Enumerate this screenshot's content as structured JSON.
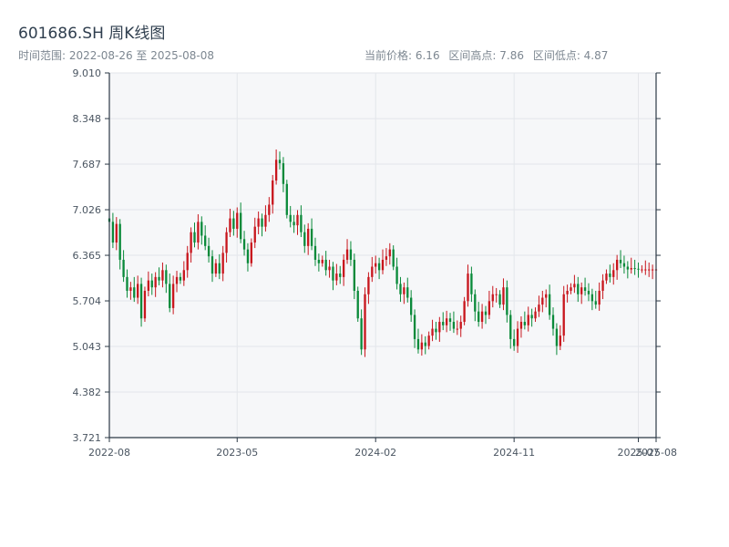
{
  "header": {
    "title": "601686.SH 周K线图",
    "range": "时间范围: 2022-08-26 至 2025-08-08",
    "current": "当前价格: 6.16",
    "high": "区间高点: 7.86",
    "low": "区间低点: 4.87"
  },
  "colors": {
    "up": "#c8161d",
    "down": "#0a8a3a",
    "plot_bg": "#f6f7f9",
    "grid": "#e3e6ea",
    "axis": "#2b3845"
  },
  "chart_data": {
    "type": "candlestick",
    "title": "601686.SH 周K线图",
    "xlabel": "",
    "ylabel": "",
    "ylim": [
      3.721,
      9.01
    ],
    "yticks": [
      "3.721",
      "4.382",
      "5.043",
      "5.704",
      "6.365",
      "7.026",
      "7.687",
      "8.348",
      "9.010"
    ],
    "xticks": [
      {
        "label": "2022-08",
        "date": "2022-08-26"
      },
      {
        "label": "2023-05",
        "date": "2023-05-05"
      },
      {
        "label": "2024-02",
        "date": "2024-02-02"
      },
      {
        "label": "2024-11",
        "date": "2024-11-01"
      },
      {
        "label": "2025-07",
        "date": "2025-07-04"
      },
      {
        "label": "2025-08",
        "date": "2025-08-08"
      }
    ],
    "grid": true,
    "legend": "none",
    "start_date": "2022-08-26",
    "week_count": 155,
    "close_series": [
      6.85,
      6.55,
      6.82,
      6.3,
      6.05,
      5.85,
      5.9,
      5.75,
      5.95,
      5.45,
      5.85,
      6.0,
      5.9,
      6.05,
      6.0,
      6.15,
      5.95,
      5.6,
      5.95,
      6.05,
      6.0,
      6.15,
      6.4,
      6.7,
      6.55,
      6.85,
      6.65,
      6.5,
      6.35,
      6.1,
      6.25,
      6.1,
      6.4,
      6.7,
      6.9,
      6.75,
      6.98,
      6.6,
      6.45,
      6.25,
      6.55,
      6.78,
      6.9,
      6.78,
      6.95,
      7.1,
      7.45,
      7.75,
      7.7,
      7.4,
      6.95,
      6.85,
      6.8,
      6.95,
      6.7,
      6.5,
      6.75,
      6.5,
      6.3,
      6.25,
      6.3,
      6.15,
      6.2,
      6.0,
      6.1,
      6.05,
      6.3,
      6.45,
      6.3,
      5.85,
      5.45,
      5.0,
      5.8,
      6.05,
      6.2,
      6.25,
      6.15,
      6.3,
      6.35,
      6.45,
      6.2,
      5.95,
      5.8,
      5.9,
      5.75,
      5.5,
      5.15,
      5.0,
      5.1,
      5.05,
      5.2,
      5.3,
      5.25,
      5.4,
      5.35,
      5.45,
      5.4,
      5.3,
      5.3,
      5.4,
      5.7,
      6.1,
      5.8,
      5.55,
      5.4,
      5.55,
      5.5,
      5.7,
      5.8,
      5.8,
      5.65,
      5.9,
      5.5,
      5.15,
      5.05,
      5.3,
      5.4,
      5.35,
      5.5,
      5.45,
      5.55,
      5.65,
      5.75,
      5.8,
      5.5,
      5.3,
      5.05,
      5.2,
      5.8,
      5.85,
      5.9,
      5.95,
      5.8,
      5.9,
      5.85,
      5.8,
      5.7,
      5.65,
      5.85,
      6.0,
      6.1,
      6.05,
      6.15,
      6.3,
      6.25,
      6.2,
      6.16,
      6.18,
      6.17,
      6.16,
      6.16,
      6.16,
      6.16,
      6.16,
      6.16
    ],
    "summary": {
      "current": 6.16,
      "high": 7.86,
      "low": 4.87
    }
  }
}
